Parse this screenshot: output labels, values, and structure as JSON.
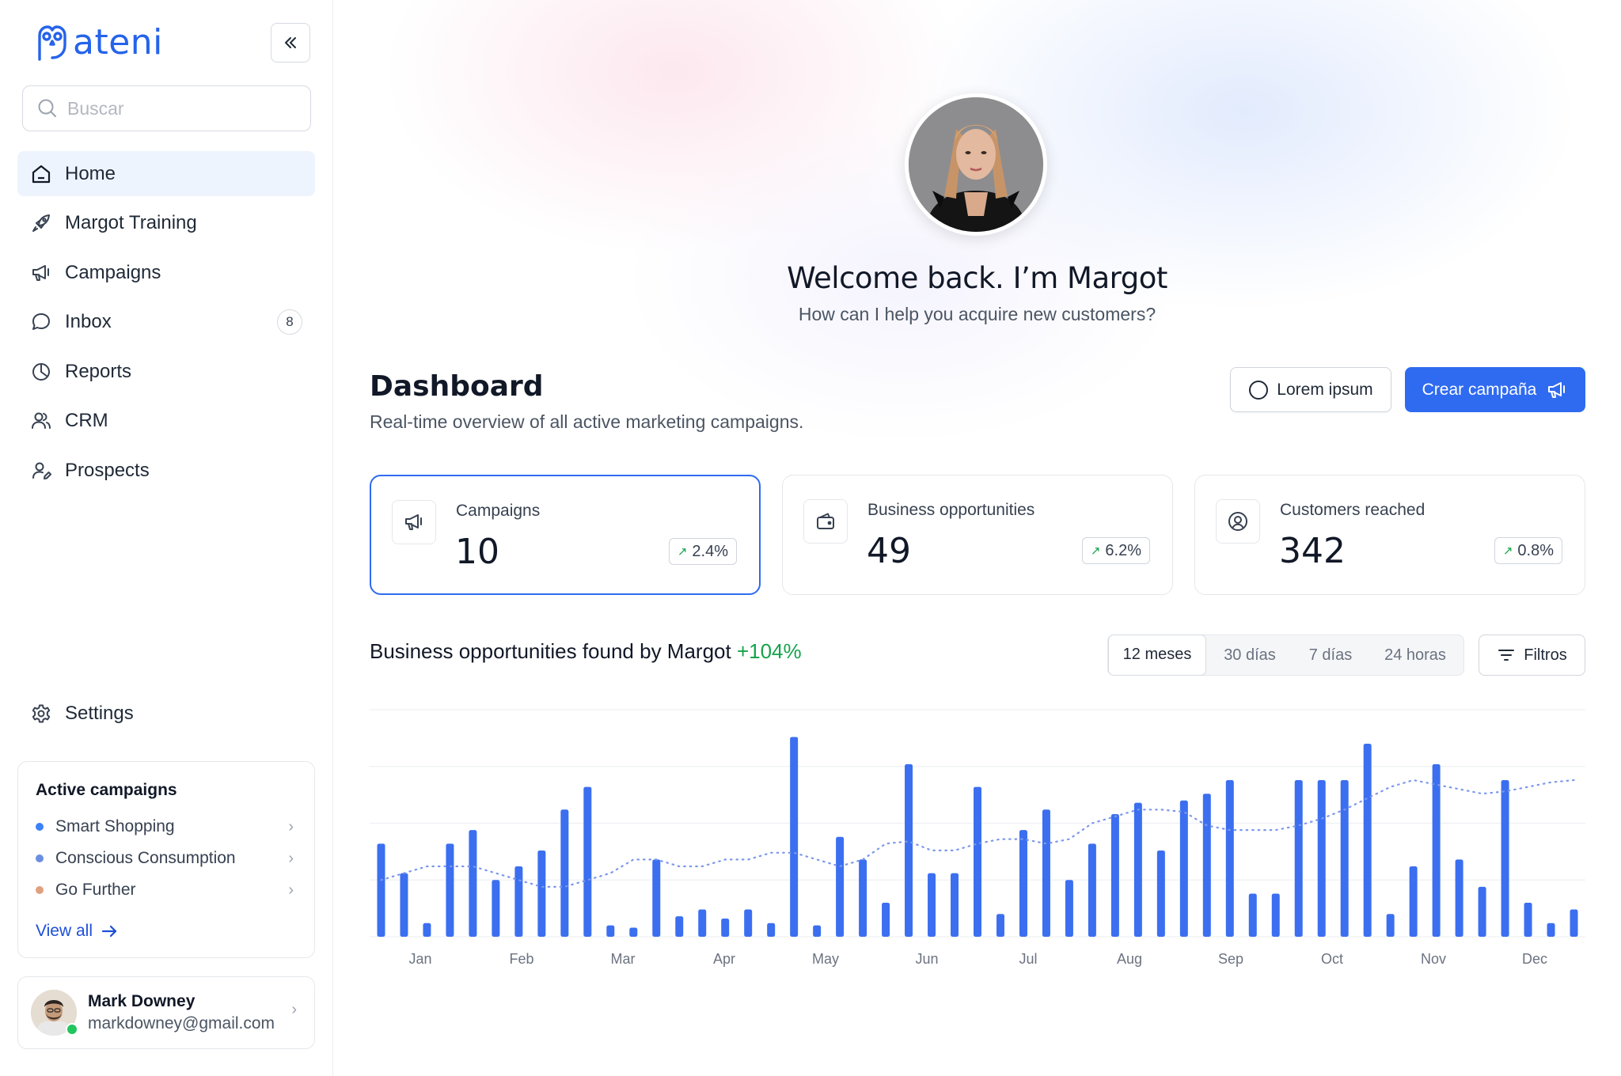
{
  "brand": {
    "name": "ateni",
    "color": "#2563eb"
  },
  "sidebar": {
    "search_placeholder": "Buscar",
    "items": [
      {
        "label": "Home",
        "icon": "home-icon",
        "active": true
      },
      {
        "label": "Margot Training",
        "icon": "rocket-icon"
      },
      {
        "label": "Campaigns",
        "icon": "megaphone-icon"
      },
      {
        "label": "Inbox",
        "icon": "chat-icon",
        "badge": "8"
      },
      {
        "label": "Reports",
        "icon": "pie-chart-icon"
      },
      {
        "label": "CRM",
        "icon": "users-icon"
      },
      {
        "label": "Prospects",
        "icon": "user-edit-icon"
      }
    ],
    "settings_label": "Settings",
    "active_campaigns": {
      "title": "Active campaigns",
      "items": [
        {
          "label": "Smart Shopping",
          "color": "#3b82f6"
        },
        {
          "label": "Conscious Consumption",
          "color": "#6b8fe0"
        },
        {
          "label": "Go Further",
          "color": "#e0a080"
        }
      ],
      "view_all": "View all"
    },
    "user": {
      "name": "Mark Downey",
      "email": "markdowney@gmail.com",
      "status": "online"
    }
  },
  "hero": {
    "welcome": "Welcome back. I’m Margot",
    "subtitle": "How can I help you acquire new customers?"
  },
  "dashboard": {
    "title": "Dashboard",
    "subtitle": "Real-time overview of all active marketing campaigns.",
    "secondary_button": "Lorem ipsum",
    "primary_button": "Crear campaña",
    "accent": "#2f6bf0",
    "stats": [
      {
        "label": "Campaigns",
        "value": "10",
        "delta": "2.4%",
        "icon": "megaphone-icon",
        "selected": true
      },
      {
        "label": "Business opportunities",
        "value": "49",
        "delta": "6.2%",
        "icon": "wallet-icon"
      },
      {
        "label": "Customers reached",
        "value": "342",
        "delta": "0.8%",
        "icon": "user-circle-icon"
      }
    ]
  },
  "chart_section": {
    "title": "Business opportunities found by Margot",
    "change": "+104%",
    "ranges": [
      "12 meses",
      "30 días",
      "7 días",
      "24 horas"
    ],
    "active_range": "12 meses",
    "filters_label": "Filtros"
  },
  "chart_data": {
    "type": "bar",
    "x_labels": [
      "Jan",
      "Feb",
      "Mar",
      "Apr",
      "May",
      "Jun",
      "Jul",
      "Aug",
      "Sep",
      "Oct",
      "Nov",
      "Dec"
    ],
    "ylim": [
      0,
      100
    ],
    "grid": true,
    "bar_color": "#3b6ff0",
    "series": [
      {
        "type": "bar",
        "values": [
          41,
          28,
          6,
          41,
          47,
          25,
          31,
          38,
          56,
          66,
          5,
          4,
          34,
          9,
          12,
          8,
          12,
          6,
          88,
          5,
          44,
          34,
          15,
          76,
          28,
          28,
          66,
          10,
          47,
          56,
          25,
          41,
          54,
          59,
          38,
          60,
          63,
          69,
          19,
          19,
          69,
          69,
          69,
          85,
          10,
          31,
          76,
          34,
          22,
          69,
          15,
          6,
          12
        ]
      },
      {
        "type": "line",
        "style": "dotted",
        "values": [
          25,
          28,
          31,
          31,
          31,
          28,
          25,
          22,
          22,
          25,
          28,
          34,
          34,
          31,
          31,
          34,
          34,
          37,
          37,
          34,
          31,
          34,
          41,
          42,
          38,
          38,
          41,
          43,
          43,
          41,
          43,
          50,
          53,
          56,
          56,
          55,
          49,
          47,
          47,
          47,
          49,
          52,
          56,
          61,
          66,
          69,
          67,
          65,
          63,
          64,
          66,
          68,
          69
        ]
      }
    ]
  }
}
